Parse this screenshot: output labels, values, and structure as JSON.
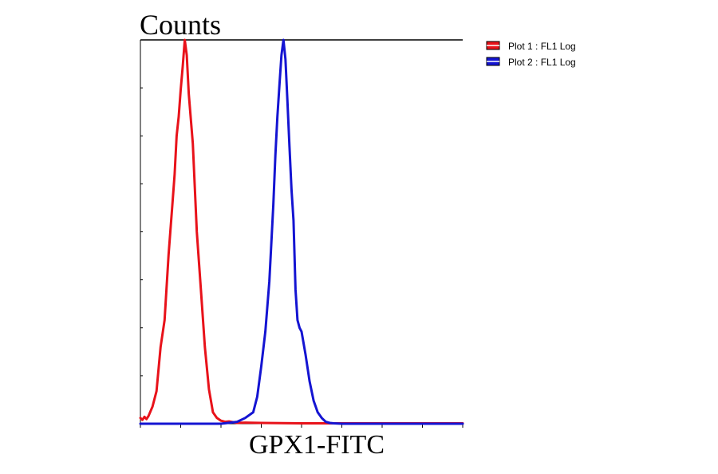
{
  "chart_data": {
    "type": "line",
    "ylabel": "Counts",
    "xlabel": "GPX1-FITC",
    "x_scale": "log",
    "xlim": [
      0,
      8
    ],
    "ylim": [
      0,
      100
    ],
    "x_tick_count": 8,
    "y_tick_count": 8,
    "grid": false,
    "legend": "top-right-outside",
    "series": [
      {
        "name": "Plot 1 : FL1 Log",
        "color": "#e8121a",
        "x": [
          0.0,
          0.05,
          0.1,
          0.15,
          0.2,
          0.3,
          0.4,
          0.5,
          0.6,
          0.7,
          0.8,
          0.85,
          0.9,
          0.95,
          1.0,
          1.05,
          1.1,
          1.15,
          1.2,
          1.3,
          1.4,
          1.5,
          1.6,
          1.7,
          1.8,
          1.9,
          2.0,
          2.1,
          2.2,
          2.4,
          2.6,
          3.0,
          4.0,
          5.0,
          6.0,
          8.0
        ],
        "y": [
          1.5,
          1.0,
          1.8,
          1.2,
          2.0,
          4.5,
          8.5,
          20,
          27,
          44,
          58,
          65,
          75,
          80,
          87,
          93,
          100,
          96,
          86,
          73,
          50,
          35,
          20,
          9,
          3,
          1.5,
          0.8,
          0.5,
          0.6,
          0.2,
          0.3,
          0.2,
          0.1,
          0.1,
          0.1,
          0.1
        ]
      },
      {
        "name": "Plot 2 : FL1 Log",
        "color": "#1414d2",
        "x": [
          0.0,
          2.0,
          2.4,
          2.6,
          2.8,
          2.9,
          3.0,
          3.1,
          3.2,
          3.3,
          3.35,
          3.4,
          3.45,
          3.5,
          3.55,
          3.6,
          3.65,
          3.7,
          3.75,
          3.8,
          3.85,
          3.9,
          3.95,
          4.0,
          4.1,
          4.2,
          4.3,
          4.4,
          4.5,
          4.6,
          4.7,
          4.8,
          5.0,
          5.5,
          6.0,
          7.0,
          8.0
        ],
        "y": [
          0,
          0,
          0.5,
          1.5,
          3.0,
          7.0,
          15,
          24,
          37,
          57,
          70,
          80,
          88,
          96,
          100,
          95,
          84,
          72,
          61,
          53,
          35,
          27,
          25,
          24,
          18,
          11,
          6,
          3,
          1.5,
          0.5,
          0.2,
          0.1,
          0,
          0,
          0,
          0,
          0
        ]
      }
    ]
  }
}
